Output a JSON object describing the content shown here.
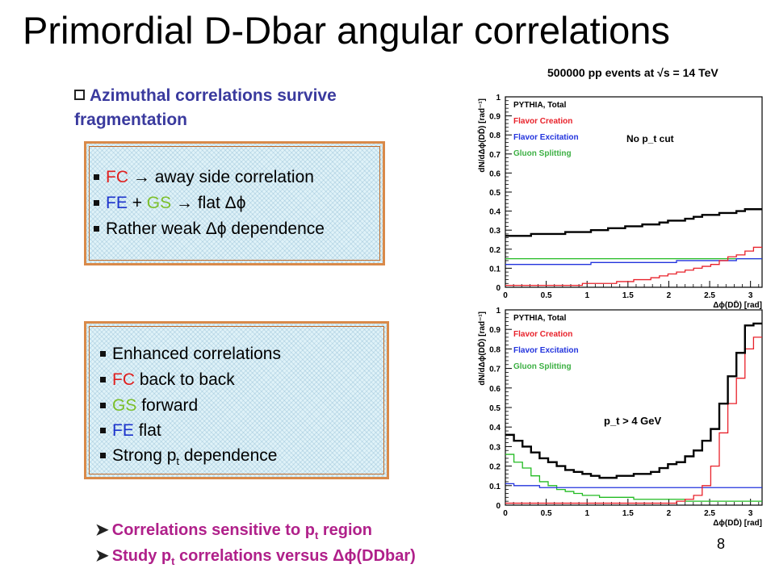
{
  "slide": {
    "title": "Primordial D-Dbar angular correlations",
    "bullet_head": "Azimuthal correlations survive fragmentation",
    "box1": {
      "l1_fc": "FC",
      "l1_arrow": "→",
      "l1_rest": "away side correlation",
      "l2_fe": "FE",
      "l2_plus": "+",
      "l2_gs": "GS",
      "l2_arrow": "→",
      "l2_rest": "flat Δϕ",
      "l3": "Rather weak Δϕ dependence"
    },
    "box2": {
      "l1": "Enhanced correlations",
      "l2_fc": "FC",
      "l2_rest": "back to back",
      "l3_gs": "GS",
      "l3_rest": "forward",
      "l4_fe": "FE",
      "l4_rest": "flat",
      "l5_pre": "Strong p",
      "l5_sub": "t",
      "l5_post": "dependence"
    },
    "conclusion1_pre": "Correlations sensitive to p",
    "conclusion1_sub": "t",
    "conclusion1_post": "region",
    "conclusion2_pre": "Study  p",
    "conclusion2_sub": "t",
    "conclusion2_post": "correlations versus Δϕ(DDbar)",
    "page_number": "8"
  },
  "colors": {
    "total": "#000000",
    "fc": "#e8212a",
    "fe": "#2233dd",
    "gs": "#22bb22",
    "box_border": "#d98a4a",
    "conclusion": "#b0208a",
    "bullet_head": "#3a3a9e"
  },
  "chart_data": [
    {
      "type": "line",
      "title": "500000 pp events at √s = 14 TeV",
      "annotation": "No p_t cut",
      "xlabel": "Δϕ(DD̄)  [rad]",
      "ylabel": "dN/dΔϕ(DD̄)  [rad⁻¹]",
      "xlim": [
        0,
        3.1416
      ],
      "ylim": [
        0,
        1
      ],
      "x_ticks": [
        "0",
        "0.5",
        "1",
        "1.5",
        "2",
        "2.5",
        "3"
      ],
      "y_ticks": [
        "0",
        "0.1",
        "0.2",
        "0.3",
        "0.4",
        "0.5",
        "0.6",
        "0.7",
        "0.8",
        "0.9",
        "1"
      ],
      "legend": [
        "PYTHIA, Total",
        "Flavor Creation",
        "Flavor Excitation",
        "Gluon Splitting"
      ],
      "series": [
        {
          "name": "PYTHIA, Total",
          "values": [
            0.27,
            0.27,
            0.27,
            0.28,
            0.28,
            0.28,
            0.28,
            0.29,
            0.29,
            0.29,
            0.3,
            0.3,
            0.31,
            0.31,
            0.32,
            0.32,
            0.33,
            0.33,
            0.34,
            0.35,
            0.35,
            0.36,
            0.37,
            0.38,
            0.38,
            0.39,
            0.39,
            0.4,
            0.41,
            0.41
          ]
        },
        {
          "name": "Flavor Creation",
          "values": [
            0.01,
            0.01,
            0.01,
            0.01,
            0.01,
            0.01,
            0.01,
            0.01,
            0.01,
            0.02,
            0.02,
            0.02,
            0.02,
            0.03,
            0.03,
            0.04,
            0.04,
            0.05,
            0.06,
            0.07,
            0.08,
            0.09,
            0.1,
            0.11,
            0.12,
            0.14,
            0.16,
            0.17,
            0.19,
            0.21
          ]
        },
        {
          "name": "Flavor Excitation",
          "values": [
            0.12,
            0.12,
            0.12,
            0.12,
            0.12,
            0.12,
            0.12,
            0.12,
            0.12,
            0.12,
            0.13,
            0.13,
            0.13,
            0.13,
            0.13,
            0.13,
            0.13,
            0.13,
            0.13,
            0.13,
            0.14,
            0.14,
            0.14,
            0.14,
            0.14,
            0.14,
            0.14,
            0.15,
            0.15,
            0.15
          ]
        },
        {
          "name": "Gluon Splitting",
          "values": [
            0.15,
            0.15,
            0.15,
            0.15,
            0.15,
            0.15,
            0.15,
            0.15,
            0.15,
            0.15,
            0.15,
            0.15,
            0.15,
            0.15,
            0.15,
            0.15,
            0.15,
            0.15,
            0.15,
            0.15,
            0.15,
            0.15,
            0.15,
            0.15,
            0.15,
            0.15,
            0.15,
            0.15,
            0.15,
            0.15
          ]
        }
      ]
    },
    {
      "type": "line",
      "annotation": "p_t > 4 GeV",
      "xlabel": "Δϕ(DD̄)  [rad]",
      "ylabel": "dN/dΔϕ(DD̄)  [rad⁻¹]",
      "xlim": [
        0,
        3.1416
      ],
      "ylim": [
        0,
        1
      ],
      "x_ticks": [
        "0",
        "0.5",
        "1",
        "1.5",
        "2",
        "2.5",
        "3"
      ],
      "y_ticks": [
        "0",
        "0.1",
        "0.2",
        "0.3",
        "0.4",
        "0.5",
        "0.6",
        "0.7",
        "0.8",
        "0.9",
        "1"
      ],
      "legend": [
        "PYTHIA, Total",
        "Flavor Creation",
        "Flavor Excitation",
        "Gluon Splitting"
      ],
      "series": [
        {
          "name": "PYTHIA, Total",
          "values": [
            0.36,
            0.33,
            0.3,
            0.27,
            0.24,
            0.22,
            0.2,
            0.18,
            0.17,
            0.16,
            0.15,
            0.14,
            0.14,
            0.15,
            0.15,
            0.16,
            0.16,
            0.17,
            0.19,
            0.21,
            0.22,
            0.25,
            0.28,
            0.33,
            0.39,
            0.52,
            0.66,
            0.78,
            0.92,
            0.93
          ]
        },
        {
          "name": "Flavor Creation",
          "values": [
            0.01,
            0.01,
            0.01,
            0.01,
            0.01,
            0.01,
            0.01,
            0.01,
            0.01,
            0.01,
            0.01,
            0.01,
            0.01,
            0.01,
            0.01,
            0.01,
            0.01,
            0.01,
            0.01,
            0.01,
            0.02,
            0.03,
            0.05,
            0.1,
            0.2,
            0.37,
            0.52,
            0.65,
            0.8,
            0.86
          ]
        },
        {
          "name": "Flavor Excitation",
          "values": [
            0.11,
            0.1,
            0.1,
            0.1,
            0.09,
            0.09,
            0.09,
            0.09,
            0.09,
            0.09,
            0.09,
            0.09,
            0.09,
            0.09,
            0.09,
            0.09,
            0.09,
            0.09,
            0.09,
            0.09,
            0.09,
            0.09,
            0.09,
            0.09,
            0.09,
            0.09,
            0.09,
            0.09,
            0.09,
            0.09
          ]
        },
        {
          "name": "Gluon Splitting",
          "values": [
            0.26,
            0.22,
            0.19,
            0.15,
            0.12,
            0.1,
            0.08,
            0.07,
            0.06,
            0.05,
            0.05,
            0.04,
            0.04,
            0.04,
            0.04,
            0.03,
            0.03,
            0.03,
            0.03,
            0.03,
            0.03,
            0.02,
            0.02,
            0.02,
            0.02,
            0.02,
            0.02,
            0.02,
            0.02,
            0.02
          ]
        }
      ]
    }
  ]
}
